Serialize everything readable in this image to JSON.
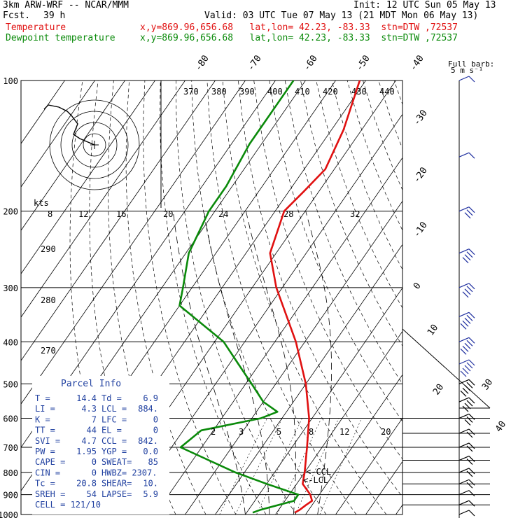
{
  "header": {
    "model": "3km ARW-WRF -- NCAR/MMM",
    "fcst_label": "Fcst.",
    "fcst_value": "39 h",
    "init": "Init: 12 UTC Sun 05 May 13",
    "valid": "Valid: 03 UTC Tue 07 May 13 (21 MDT Mon 06 May 13)",
    "line1_name": "Temperature",
    "line1_info": "x,y=869.96,656.68   lat,lon= 42.23, -83.33  stn=DTW ,72537",
    "line2_name": "Dewpoint temperature",
    "line2_info": "x,y=869.96,656.68   lat,lon= 42.23, -83.33  stn=DTW ,72537"
  },
  "barb_key": {
    "title": "Full barb:",
    "value": "5 m s⁻¹"
  },
  "colors": {
    "temperature": "#e01010",
    "dewpoint": "#0a8a0a",
    "parcel": "#2040a0",
    "hodo": "#000000"
  },
  "chart_data": {
    "type": "line",
    "title": "",
    "pressure_ticks": [
      "100",
      "200",
      "300",
      "400",
      "500",
      "600",
      "700",
      "800",
      "900",
      "1000"
    ],
    "skew_temp_labels": [
      "-80",
      "-70",
      "-60",
      "-50",
      "-40",
      "-30",
      "-20",
      "-10",
      "0",
      "10",
      "20",
      "30",
      "40"
    ],
    "theta_labels": [
      "370",
      "380",
      "390",
      "400",
      "410",
      "420",
      "430",
      "440"
    ],
    "theta_left_labels": [
      "290",
      "280",
      "270"
    ],
    "hodo_speed_labels": [
      "kts",
      "8",
      "12",
      "16",
      "20",
      "24",
      "28",
      "32"
    ],
    "mixing_ratio_labels": [
      "2",
      "3",
      "5",
      "8",
      "12",
      "20"
    ],
    "lcl_labels": [
      "<-CCL",
      "<-LCL"
    ],
    "series": [
      {
        "name": "Temperature",
        "points": [
          [
            100,
            -62
          ],
          [
            130,
            -56
          ],
          [
            160,
            -53
          ],
          [
            180,
            -55
          ],
          [
            200,
            -57
          ],
          [
            250,
            -52
          ],
          [
            300,
            -42
          ],
          [
            400,
            -23
          ],
          [
            500,
            -10
          ],
          [
            600,
            -1
          ],
          [
            700,
            5
          ],
          [
            800,
            10
          ],
          [
            850,
            12
          ],
          [
            900,
            17
          ],
          [
            930,
            19
          ],
          [
            950,
            18
          ],
          [
            975,
            17
          ],
          [
            990,
            16
          ]
        ]
      },
      {
        "name": "Dewpoint temperature",
        "points": [
          [
            100,
            -84
          ],
          [
            140,
            -84
          ],
          [
            175,
            -82
          ],
          [
            200,
            -82
          ],
          [
            250,
            -79
          ],
          [
            300,
            -73
          ],
          [
            330,
            -70
          ],
          [
            400,
            -47
          ],
          [
            450,
            -37
          ],
          [
            500,
            -28
          ],
          [
            550,
            -20
          ],
          [
            580,
            -13
          ],
          [
            600,
            -17
          ],
          [
            640,
            -34
          ],
          [
            700,
            -37
          ],
          [
            800,
            -13
          ],
          [
            850,
            0
          ],
          [
            900,
            13
          ],
          [
            930,
            13
          ],
          [
            975,
            4
          ],
          [
            990,
            2
          ]
        ]
      }
    ],
    "hodograph_points": [
      [
        0,
        0
      ],
      [
        -7,
        3
      ],
      [
        -10,
        5
      ],
      [
        -8,
        10
      ],
      [
        -11,
        14
      ],
      [
        -13,
        16
      ],
      [
        -17,
        18
      ],
      [
        -22,
        19
      ],
      [
        -24,
        17
      ]
    ],
    "wind_barbs": [
      {
        "p": 100,
        "kt": 5
      },
      {
        "p": 150,
        "kt": 10
      },
      {
        "p": 200,
        "kt": 25
      },
      {
        "p": 250,
        "kt": 35
      },
      {
        "p": 300,
        "kt": 40
      },
      {
        "p": 350,
        "kt": 45
      },
      {
        "p": 400,
        "kt": 45
      },
      {
        "p": 450,
        "kt": 50
      },
      {
        "p": 500,
        "kt": 45
      },
      {
        "p": 550,
        "kt": 35
      },
      {
        "p": 600,
        "kt": 25
      },
      {
        "p": 650,
        "kt": 20
      },
      {
        "p": 700,
        "kt": 15
      },
      {
        "p": 750,
        "kt": 15
      },
      {
        "p": 800,
        "kt": 15
      },
      {
        "p": 850,
        "kt": 15
      },
      {
        "p": 900,
        "kt": 10
      },
      {
        "p": 950,
        "kt": 10
      },
      {
        "p": 1000,
        "kt": 5
      }
    ]
  },
  "parcel_info": {
    "title": "Parcel Info",
    "rows": [
      [
        "T  =",
        "14.4",
        "Td =",
        "6.9"
      ],
      [
        "LI =",
        "4.3",
        "LCL =",
        "884."
      ],
      [
        "K  =",
        "7",
        "LFC =",
        "0"
      ],
      [
        "TT =",
        "44",
        "EL  =",
        "0"
      ],
      [
        "SVI =",
        "4.7",
        "CCL =",
        "842."
      ],
      [
        "PW =",
        "1.95",
        "YGP =",
        "0.0"
      ],
      [
        "CAPE =",
        "0",
        "SWEAT=",
        "85"
      ],
      [
        "CIN =",
        "0",
        "HWBZ= 2307.",
        ""
      ],
      [
        "Tc =",
        "20.8",
        "SHEAR=",
        "10."
      ],
      [
        "SREH =",
        "54",
        "LAPSE=",
        "5.9"
      ],
      [
        "CELL = 121/10",
        "",
        "",
        ""
      ]
    ]
  }
}
